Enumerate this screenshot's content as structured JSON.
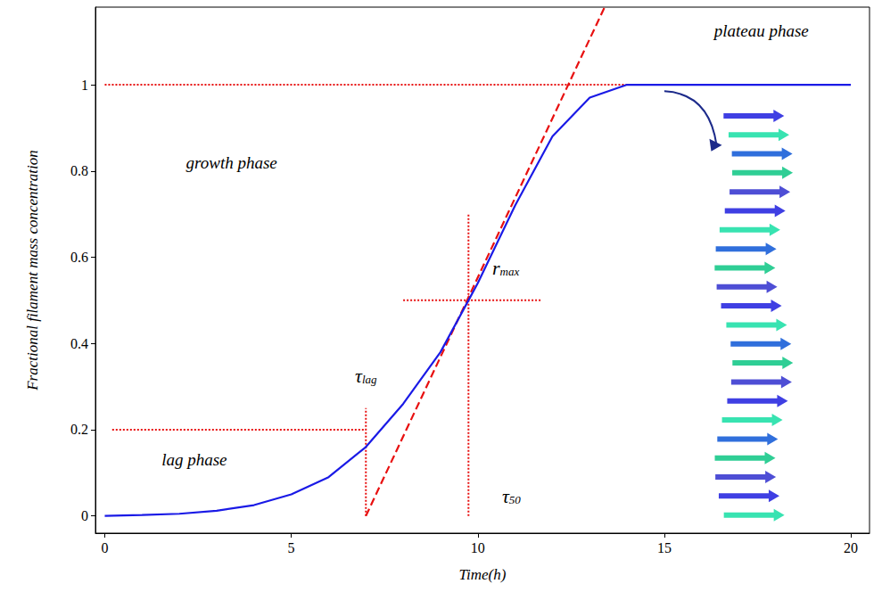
{
  "chart_data": {
    "type": "line",
    "x_label": "Time(h)",
    "y_label": "Fractional filament mass concentration",
    "xlim": [
      -0.25,
      20.5
    ],
    "xticks": [
      0,
      5,
      10,
      15,
      20
    ],
    "ylim": [
      -0.04,
      1.18
    ],
    "yticks": [
      0,
      0.2,
      0.4,
      0.6,
      0.8,
      1
    ],
    "grid": false,
    "series": [
      {
        "color": "#1a1ae6",
        "line_style": "solid",
        "x": [
          0,
          1,
          2,
          3,
          4,
          5,
          6,
          7,
          8,
          9,
          9.75,
          10,
          11,
          12,
          13,
          14,
          15,
          16,
          17,
          18,
          19,
          20
        ],
        "values": [
          0,
          0.002,
          0.005,
          0.012,
          0.025,
          0.05,
          0.09,
          0.16,
          0.26,
          0.38,
          0.5,
          0.54,
          0.72,
          0.88,
          0.97,
          1,
          1,
          1,
          1,
          1,
          1,
          1
        ]
      },
      {
        "color": "#e81010",
        "line_style": "dashed",
        "x": [
          7,
          13.4
        ],
        "values": [
          0,
          1.18
        ]
      },
      {
        "color": "#e81010",
        "line_style": "dotted",
        "x": [
          0,
          14
        ],
        "values": [
          1,
          1
        ]
      },
      {
        "color": "#e81010",
        "line_style": "dotted",
        "x": [
          0.2,
          7
        ],
        "values": [
          0.2,
          0.2
        ]
      },
      {
        "color": "#e81010",
        "line_style": "dotted",
        "x": [
          7,
          7
        ],
        "values": [
          0,
          0.25
        ]
      },
      {
        "color": "#e81010",
        "line_style": "dotted",
        "x": [
          8,
          11.7
        ],
        "values": [
          0.5,
          0.5
        ]
      },
      {
        "color": "#e81010",
        "line_style": "dotted",
        "x": [
          9.75,
          9.75
        ],
        "values": [
          0,
          0.7
        ]
      }
    ],
    "annotations": [
      {
        "text": "plateau phase"
      },
      {
        "text": "growth phase"
      },
      {
        "text": "lag phase"
      },
      {
        "text": "τ",
        "subscript": "lag"
      },
      {
        "text": "r",
        "subscript": "max"
      },
      {
        "text": "τ",
        "subscript": "50"
      }
    ]
  }
}
